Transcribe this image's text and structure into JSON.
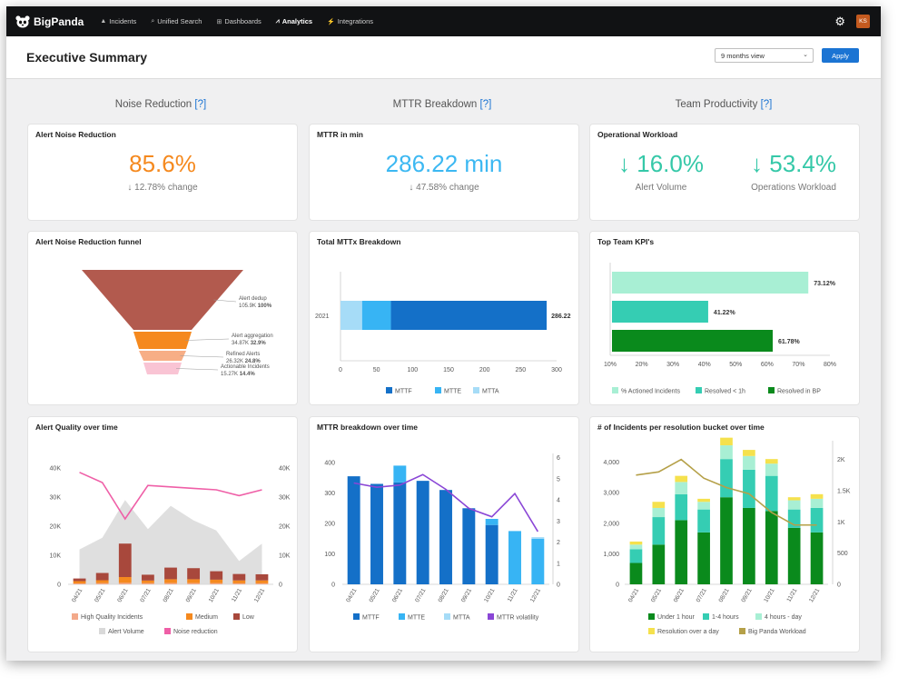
{
  "nav": {
    "brand": "BigPanda",
    "items": [
      {
        "label": "Incidents",
        "icon": "alert-icon"
      },
      {
        "label": "Unified Search",
        "icon": "search-icon"
      },
      {
        "label": "Dashboards",
        "icon": "grid-icon"
      },
      {
        "label": "Analytics",
        "icon": "analytics-icon"
      },
      {
        "label": "Integrations",
        "icon": "plug-icon"
      }
    ],
    "active": "Analytics",
    "avatar_initials": "KS"
  },
  "header": {
    "title": "Executive Summary",
    "view_select": "9 months view",
    "apply_label": "Apply"
  },
  "sections": {
    "noise": "Noise Reduction",
    "mttr": "MTTR Breakdown",
    "team": "Team Productivity",
    "help": "[?]"
  },
  "kpi": {
    "noise_title": "Alert Noise Reduction",
    "noise_value": "85.6%",
    "noise_change": "↓ 12.78% change",
    "mttr_title": "MTTR in min",
    "mttr_value": "286.22 min",
    "mttr_change": "↓ 47.58% change",
    "workload_title": "Operational Workload",
    "alert_volume_value": "↓ 16.0%",
    "alert_volume_label": "Alert Volume",
    "ops_workload_value": "↓ 53.4%",
    "ops_workload_label": "Operations Workload"
  },
  "colors": {
    "orange": "#f5891e",
    "blue_light": "#3cb8f2",
    "teal": "#35c8a8",
    "funnel": [
      "#b25a4e",
      "#f5891e",
      "#f7ae86",
      "#f9c4d4"
    ],
    "mttf": "#1470c8",
    "mtte": "#37b4f4",
    "mtta": "#a6dcf7",
    "volatility": "#8a46d6",
    "kpi_bars": [
      "#a8efd4",
      "#35cdb3",
      "#0a8a1c"
    ],
    "bucket": [
      "#0a8a1c",
      "#35cdb3",
      "#a8efd4",
      "#f5e14d"
    ],
    "workload_line": "#b5a048",
    "hq": "#f3a98a",
    "medium": "#f5891e",
    "low": "#a8483c",
    "alert_volume": "#d9d9d9",
    "noise_line": "#ef5fa7"
  },
  "chart_data": [
    {
      "type": "funnel",
      "title": "Alert Noise Reduction funnel",
      "stages": [
        {
          "name": "Alert dedup",
          "value": "105.9K",
          "pct": "100%"
        },
        {
          "name": "Alert aggregation",
          "value": "34.87K",
          "pct": "32.9%"
        },
        {
          "name": "Refined Alerts",
          "value": "26.32K",
          "pct": "24.8%"
        },
        {
          "name": "Actionable Incidents",
          "value": "15.27K",
          "pct": "14.4%"
        }
      ]
    },
    {
      "type": "bar",
      "title": "Total MTTx Breakdown",
      "orientation": "horizontal",
      "categories": [
        "2021"
      ],
      "series": [
        {
          "name": "MTTA",
          "values": [
            30
          ]
        },
        {
          "name": "MTTE",
          "values": [
            40
          ]
        },
        {
          "name": "MTTF",
          "values": [
            216.22
          ]
        }
      ],
      "total_label": "286.22",
      "xlim": [
        0,
        300
      ],
      "xticks": [
        0,
        50,
        100,
        150,
        200,
        250,
        300
      ],
      "legend": [
        "MTTF",
        "MTTE",
        "MTTA"
      ]
    },
    {
      "type": "bar",
      "title": "Top Team KPI's",
      "orientation": "horizontal",
      "series": [
        {
          "name": "% Actioned Incidents",
          "value": 73.12,
          "label": "73.12%"
        },
        {
          "name": "Resolved < 1h",
          "value": 41.22,
          "label": "41.22%"
        },
        {
          "name": "Resolved in BP",
          "value": 61.78,
          "label": "61.78%"
        }
      ],
      "xlim": [
        10,
        80
      ],
      "xticks": [
        "10%",
        "20%",
        "30%",
        "40%",
        "50%",
        "60%",
        "70%",
        "80%"
      ]
    },
    {
      "type": "bar",
      "title": "Alert Quality over time",
      "categories": [
        "04/21",
        "05/21",
        "06/21",
        "07/21",
        "08/21",
        "09/21",
        "10/21",
        "11/21",
        "12/21"
      ],
      "yticks_left": [
        "0",
        "10K",
        "20K",
        "30K",
        "40K"
      ],
      "yticks_right": [
        "0",
        "10K",
        "20K",
        "30K",
        "40K"
      ],
      "ylim": [
        0,
        45000
      ],
      "series": [
        {
          "name": "High Quality Incidents",
          "values": [
            300,
            400,
            500,
            400,
            450,
            450,
            400,
            350,
            350
          ]
        },
        {
          "name": "Medium",
          "values": [
            800,
            1000,
            2000,
            900,
            1300,
            1300,
            1200,
            1000,
            1000
          ]
        },
        {
          "name": "Low",
          "values": [
            900,
            2500,
            11500,
            2000,
            4000,
            3800,
            2900,
            2200,
            2100
          ]
        },
        {
          "name": "Alert Volume",
          "values": [
            12000,
            16000,
            29000,
            19000,
            27000,
            22000,
            18500,
            8000,
            14000
          ]
        },
        {
          "name": "Noise reduction",
          "values": [
            38500,
            35000,
            22500,
            34000,
            33500,
            33000,
            32500,
            30500,
            32500
          ]
        }
      ],
      "legend": [
        "High Quality Incidents",
        "Medium",
        "Low",
        "Alert Volume",
        "Noise reduction"
      ]
    },
    {
      "type": "bar",
      "title": "MTTR breakdown over time",
      "categories": [
        "04/21",
        "05/21",
        "06/21",
        "07/21",
        "08/21",
        "09/21",
        "10/21",
        "11/21",
        "12/21"
      ],
      "yticks_left": [
        "0",
        "100",
        "200",
        "300",
        "400"
      ],
      "yticks_right": [
        "0",
        "1",
        "2",
        "3",
        "4",
        "5",
        "6"
      ],
      "ylim": [
        0,
        430
      ],
      "y2lim": [
        0,
        6.2
      ],
      "series": [
        {
          "name": "MTTF",
          "values": [
            355,
            330,
            335,
            340,
            310,
            250,
            195,
            0,
            0
          ]
        },
        {
          "name": "MTTE",
          "values": [
            0,
            0,
            55,
            0,
            0,
            0,
            20,
            175,
            150
          ]
        },
        {
          "name": "MTTA",
          "values": [
            0,
            0,
            0,
            0,
            0,
            0,
            0,
            0,
            5
          ]
        },
        {
          "name": "MTTR volatility",
          "values": [
            4.8,
            4.6,
            4.7,
            5.2,
            4.5,
            3.6,
            3.2,
            4.3,
            2.5
          ]
        }
      ],
      "legend": [
        "MTTF",
        "MTTE",
        "MTTA",
        "MTTR volatility"
      ]
    },
    {
      "type": "bar",
      "title": "# of Incidents per resolution bucket over time",
      "categories": [
        "04/21",
        "05/21",
        "06/21",
        "07/21",
        "08/21",
        "09/21",
        "10/21",
        "11/21",
        "12/21"
      ],
      "yticks_left": [
        "0",
        "1,000",
        "2,000",
        "3,000",
        "4,000"
      ],
      "yticks_right": [
        "0",
        "500",
        "1K",
        "1.5K",
        "2K"
      ],
      "ylim": [
        0,
        4700
      ],
      "y2lim": [
        0,
        2300
      ],
      "series": [
        {
          "name": "Under 1 hour",
          "values": [
            700,
            1300,
            2100,
            1700,
            2850,
            2500,
            2400,
            1850,
            1700
          ]
        },
        {
          "name": "1-4 hours",
          "values": [
            450,
            900,
            850,
            750,
            1250,
            1250,
            1150,
            600,
            800
          ]
        },
        {
          "name": "4 hours - day",
          "values": [
            150,
            300,
            400,
            250,
            450,
            450,
            400,
            300,
            300
          ]
        },
        {
          "name": "Resolution over a day",
          "values": [
            100,
            200,
            200,
            100,
            250,
            200,
            150,
            100,
            150
          ]
        },
        {
          "name": "Big Panda Workload",
          "values": [
            1750,
            1800,
            2000,
            1700,
            1550,
            1450,
            1150,
            950,
            950
          ]
        }
      ],
      "legend": [
        "Under 1 hour",
        "1-4 hours",
        "4 hours - day",
        "Resolution over a day",
        "Big Panda Workload"
      ]
    }
  ]
}
